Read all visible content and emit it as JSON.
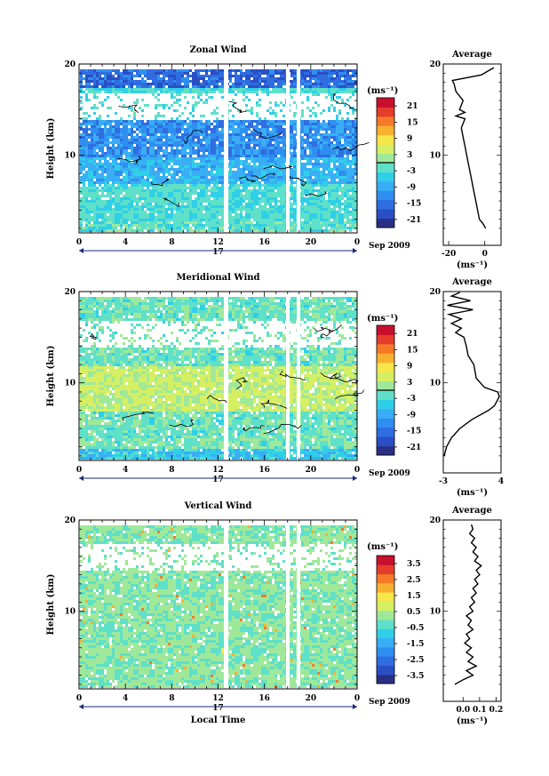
{
  "chart_data": [
    {
      "type": "heatmap",
      "title": "Zonal Wind",
      "ylabel": "Height (km)",
      "xlabel": "",
      "xlim": [
        0,
        24
      ],
      "ylim": [
        1.5,
        20
      ],
      "x_ticks": [
        "0",
        "4",
        "8",
        "12",
        "16",
        "20",
        "0"
      ],
      "y_ticks": [
        "10",
        "20"
      ],
      "date_axis": {
        "day": "17",
        "label": "Sep 2009"
      },
      "colorbar": {
        "unit": "(ms⁻¹)",
        "ticks": [
          "21",
          "15",
          "9",
          "3",
          "-3",
          "-9",
          "-15",
          "-21"
        ],
        "range": [
          -24,
          24
        ],
        "zero_line": true
      },
      "colors": [
        "#2a2f86",
        "#2a4fc4",
        "#2f6de0",
        "#2f8ff0",
        "#39aef5",
        "#2fcfe8",
        "#5fe0c8",
        "#9fe89a",
        "#d6ef62",
        "#f7e64a",
        "#f8b030",
        "#f47a2a",
        "#e63c2c",
        "#c8102e"
      ],
      "field_description": {
        "stratosphere_band_km": [
          17.5,
          19.5
        ],
        "jet_core_km": [
          10,
          14
        ],
        "jet_speed": -12,
        "lower_mean": -3,
        "missing_gap_km": [
          14,
          17
        ]
      },
      "profile": {
        "title": "Average",
        "xlabel": "(ms⁻¹)",
        "x_ticks": [
          "-20",
          "0"
        ],
        "xlim": [
          -23,
          9
        ],
        "ylim": [
          1.5,
          20
        ],
        "y_ticks": [
          "10",
          "20"
        ],
        "points": [
          [
            0.5,
            2.0
          ],
          [
            -1,
            2.5
          ],
          [
            -3,
            3.0
          ],
          [
            -4,
            4.0
          ],
          [
            -5,
            5.0
          ],
          [
            -6,
            6.0
          ],
          [
            -7,
            7.0
          ],
          [
            -8,
            8.0
          ],
          [
            -9,
            9.0
          ],
          [
            -10,
            10.0
          ],
          [
            -11,
            11.0
          ],
          [
            -12,
            12.0
          ],
          [
            -13,
            13.0
          ],
          [
            -11,
            14.0
          ],
          [
            -16,
            14.3
          ],
          [
            -11,
            14.7
          ],
          [
            -14,
            15.0
          ],
          [
            -12,
            16.0
          ],
          [
            -16,
            17.0
          ],
          [
            -17,
            17.8
          ],
          [
            -18,
            18.2
          ],
          [
            -10,
            18.5
          ],
          [
            -2,
            18.8
          ],
          [
            5,
            19.6
          ]
        ]
      }
    },
    {
      "type": "heatmap",
      "title": "Meridional Wind",
      "ylabel": "Height (km)",
      "xlabel": "",
      "xlim": [
        0,
        24
      ],
      "ylim": [
        1.5,
        20
      ],
      "x_ticks": [
        "0",
        "4",
        "8",
        "12",
        "16",
        "20",
        "0"
      ],
      "y_ticks": [
        "10",
        "20"
      ],
      "date_axis": {
        "day": "17",
        "label": "Sep 2009"
      },
      "colorbar": {
        "unit": "(ms⁻¹)",
        "ticks": [
          "21",
          "15",
          "9",
          "3",
          "-3",
          "-9",
          "-15",
          "-21"
        ],
        "range": [
          -24,
          24
        ],
        "zero_line": true
      },
      "colors": [
        "#2a2f86",
        "#2a4fc4",
        "#2f6de0",
        "#2f8ff0",
        "#39aef5",
        "#2fcfe8",
        "#5fe0c8",
        "#9fe89a",
        "#d6ef62",
        "#f7e64a",
        "#f8b030",
        "#f47a2a",
        "#e63c2c",
        "#c8102e"
      ],
      "field_description": {
        "mid_positive_km": [
          7,
          12
        ],
        "mid_speed": 4,
        "upper_mean": -1,
        "missing_gap_km": [
          14,
          17
        ]
      },
      "profile": {
        "title": "Average",
        "xlabel": "(ms⁻¹)",
        "x_ticks": [
          "-3",
          "4"
        ],
        "xlim": [
          -3,
          4
        ],
        "ylim": [
          1.5,
          20
        ],
        "y_ticks": [
          "10",
          "20"
        ],
        "points": [
          [
            -2.9,
            2.0
          ],
          [
            -2.6,
            3.0
          ],
          [
            -2.0,
            4.0
          ],
          [
            -1.0,
            5.0
          ],
          [
            0.5,
            6.0
          ],
          [
            2.5,
            7.0
          ],
          [
            3.2,
            7.5
          ],
          [
            3.8,
            8.5
          ],
          [
            3.6,
            9.0
          ],
          [
            2.0,
            9.5
          ],
          [
            1.0,
            10.5
          ],
          [
            0.7,
            12.0
          ],
          [
            0.0,
            13.0
          ],
          [
            -0.2,
            14.0
          ],
          [
            -0.5,
            15.0
          ],
          [
            -1.5,
            15.5
          ],
          [
            -0.8,
            16.0
          ],
          [
            -2.0,
            16.5
          ],
          [
            -0.8,
            17.0
          ],
          [
            -2.3,
            17.5
          ],
          [
            0.6,
            18.0
          ],
          [
            -2.5,
            18.5
          ],
          [
            0.3,
            19.0
          ],
          [
            -2.0,
            19.5
          ],
          [
            -1.0,
            19.9
          ]
        ]
      }
    },
    {
      "type": "heatmap",
      "title": "Vertical Wind",
      "ylabel": "Height (km)",
      "xlabel": "Local Time",
      "xlim": [
        0,
        24
      ],
      "ylim": [
        1.5,
        20
      ],
      "x_ticks": [
        "0",
        "4",
        "8",
        "12",
        "16",
        "20",
        "0"
      ],
      "y_ticks": [
        "10",
        "20"
      ],
      "date_axis": {
        "day": "17",
        "label": "Sep 2009"
      },
      "colorbar": {
        "unit": "(ms⁻¹)",
        "ticks": [
          "3.5",
          "2.5",
          "1.5",
          "0.5",
          "-0.5",
          "-1.5",
          "-2.5",
          "-3.5"
        ],
        "range": [
          -4,
          4
        ],
        "zero_line": false
      },
      "colors": [
        "#2a2f86",
        "#2a4fc4",
        "#2f6de0",
        "#2f8ff0",
        "#39aef5",
        "#2fcfe8",
        "#5fe0c8",
        "#9fe89a",
        "#d6ef62",
        "#f7e64a",
        "#f8b030",
        "#f47a2a",
        "#e63c2c",
        "#c8102e"
      ],
      "field_description": {
        "mean": 0.1,
        "missing_gap_km": [
          14.5,
          17.5
        ]
      },
      "profile": {
        "title": "Average",
        "xlabel": "(ms⁻¹)",
        "x_ticks": [
          "0.0",
          "0.1",
          "0.2"
        ],
        "xlim": [
          -0.12,
          0.23
        ],
        "ylim": [
          1.5,
          20
        ],
        "y_ticks": [
          "10",
          "20"
        ],
        "points": [
          [
            -0.05,
            2.0
          ],
          [
            0.0,
            2.5
          ],
          [
            0.06,
            3.0
          ],
          [
            0.02,
            3.5
          ],
          [
            0.08,
            4.0
          ],
          [
            0.03,
            4.5
          ],
          [
            0.06,
            5.0
          ],
          [
            0.02,
            5.5
          ],
          [
            0.05,
            6.0
          ],
          [
            0.01,
            6.5
          ],
          [
            0.04,
            7.0
          ],
          [
            0.02,
            7.5
          ],
          [
            0.06,
            8.0
          ],
          [
            0.03,
            8.5
          ],
          [
            0.05,
            9.0
          ],
          [
            0.02,
            9.5
          ],
          [
            0.06,
            10.0
          ],
          [
            0.04,
            10.5
          ],
          [
            0.07,
            11.0
          ],
          [
            0.05,
            11.5
          ],
          [
            0.08,
            12.0
          ],
          [
            0.06,
            12.5
          ],
          [
            0.09,
            13.0
          ],
          [
            0.07,
            13.5
          ],
          [
            0.1,
            14.0
          ],
          [
            0.08,
            14.5
          ],
          [
            0.11,
            15.0
          ],
          [
            0.07,
            15.5
          ],
          [
            0.09,
            16.0
          ],
          [
            0.06,
            16.5
          ],
          [
            0.08,
            17.0
          ],
          [
            0.05,
            17.5
          ],
          [
            0.07,
            18.0
          ],
          [
            0.04,
            18.5
          ],
          [
            0.06,
            19.0
          ],
          [
            0.05,
            19.5
          ]
        ]
      }
    }
  ]
}
